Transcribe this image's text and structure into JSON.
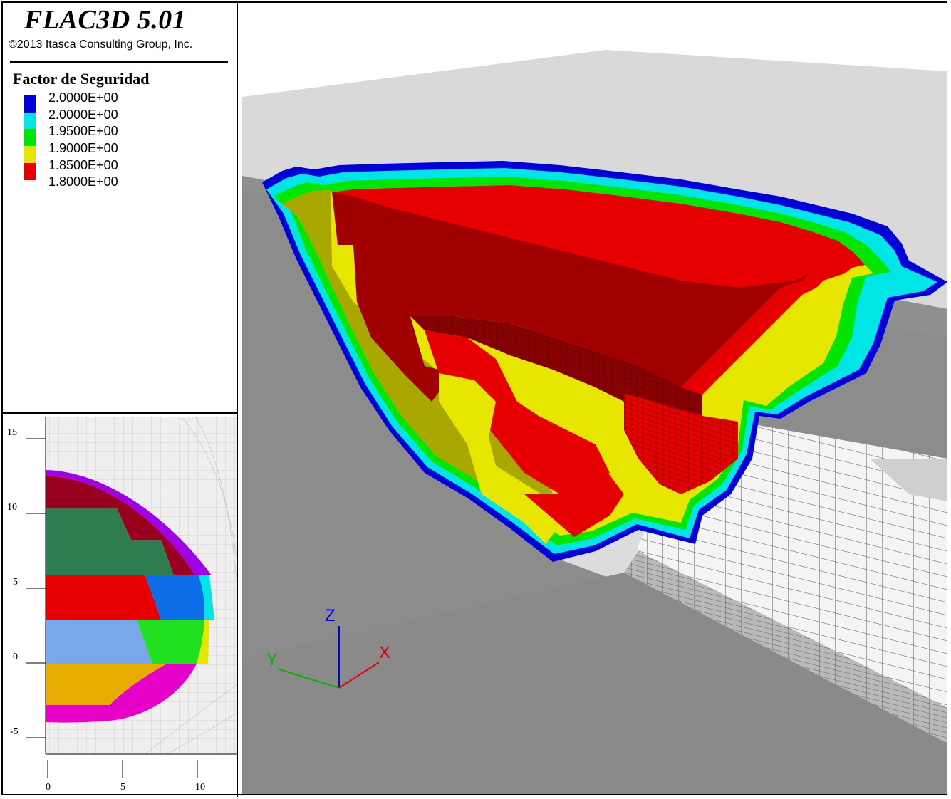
{
  "header": {
    "app_title": "FLAC3D 5.01",
    "copyright": "©2013 Itasca Consulting Group, Inc."
  },
  "legend": {
    "title": "Factor de Seguridad",
    "items": [
      {
        "label": "2.0000E+00",
        "color": "#0000d8"
      },
      {
        "label": "2.0000E+00",
        "color": "#00e6e6"
      },
      {
        "label": "1.9500E+00",
        "color": "#00e600"
      },
      {
        "label": "1.9000E+00",
        "color": "#e6e600"
      },
      {
        "label": "1.8500E+00",
        "color": "#e60000"
      },
      {
        "label": "1.8000E+00",
        "color": ""
      }
    ]
  },
  "section_plot": {
    "y_ticks": [
      "15",
      "10",
      "5",
      "0",
      "-5"
    ],
    "x_ticks": [
      "0",
      "5",
      "10"
    ],
    "excavation_stage_colors": [
      "#9a0020",
      "#2e7d52",
      "#e60000",
      "#0c6ee6",
      "#78a8e8",
      "#20e020",
      "#e6ac00",
      "#e600c8",
      "#a000e6",
      "#00e6e6",
      "#e6e600"
    ]
  },
  "axes_triad": {
    "z_label": "Z",
    "y_label": "Y",
    "x_label": "X",
    "z_color": "#0000e6",
    "y_color": "#00b400",
    "x_color": "#e60000"
  }
}
